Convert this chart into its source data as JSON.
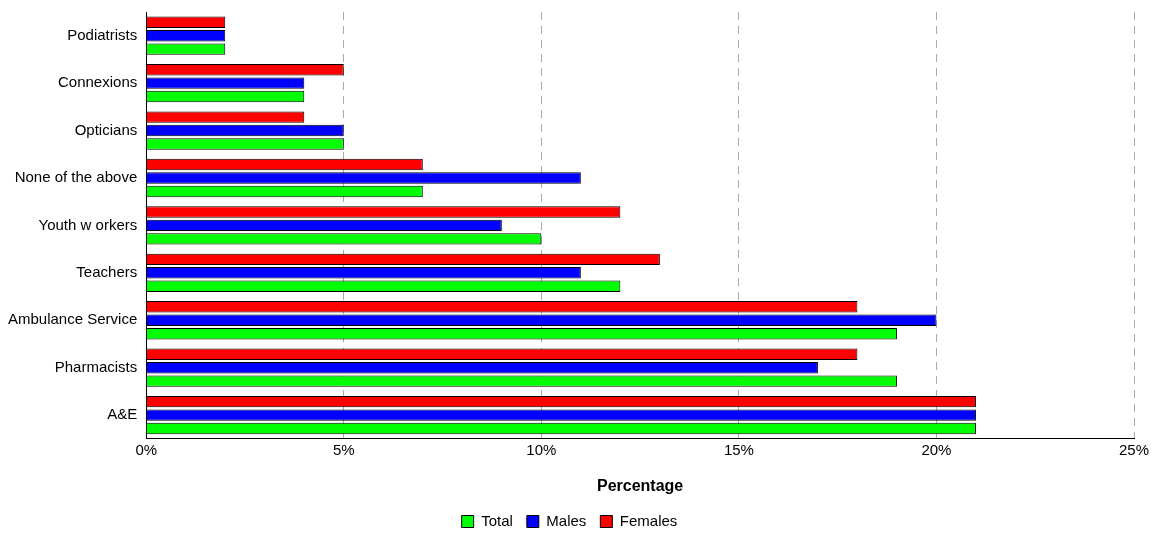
{
  "chart_data": {
    "type": "bar",
    "orientation": "horizontal",
    "xlabel": "Percentage",
    "categories": [
      "Podiatrists",
      "Connexions",
      "Opticians",
      "None of the above",
      "Youth w orkers",
      "Teachers",
      "Ambulance Service",
      "Pharmacists",
      "A&E"
    ],
    "series": [
      {
        "name": "Total",
        "color": "#00ff00",
        "values": [
          2,
          4,
          5,
          7,
          10,
          12,
          19,
          19,
          21
        ]
      },
      {
        "name": "Males",
        "color": "#0000ff",
        "values": [
          2,
          4,
          5,
          11,
          9,
          11,
          20,
          17,
          21
        ]
      },
      {
        "name": "Females",
        "color": "#ff0000",
        "values": [
          2,
          5,
          4,
          7,
          12,
          13,
          18,
          18,
          21
        ]
      }
    ],
    "xlim": [
      0,
      25
    ],
    "xticks": [
      {
        "value": 0,
        "label": "0%"
      },
      {
        "value": 5,
        "label": "5%"
      },
      {
        "value": 10,
        "label": "10%"
      },
      {
        "value": 15,
        "label": "15%"
      },
      {
        "value": 20,
        "label": "20%"
      },
      {
        "value": 25,
        "label": "25%"
      }
    ],
    "grid": "x",
    "legend": "bottom"
  }
}
